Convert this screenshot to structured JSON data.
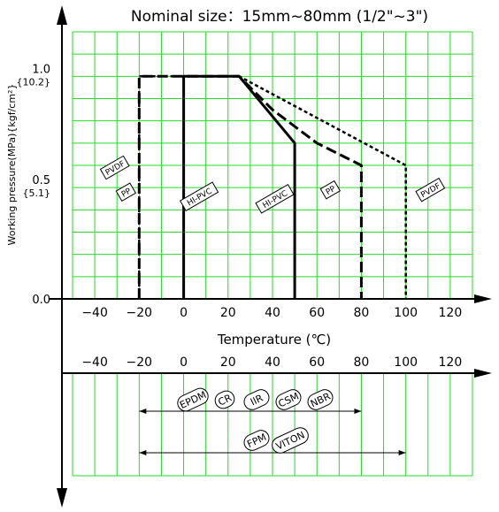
{
  "title": "Nominal size：15mm~80mm (1/2\"~3\")",
  "colors": {
    "grid": "#22dd22",
    "line": "#000000",
    "background": "#ffffff"
  },
  "chart_data": {
    "type": "line",
    "title": "Nominal size：15mm~80mm (1/2\"~3\")",
    "xlabel": "Temperature (℃)",
    "ylabel": "Working pressure(MPa){kgf/cm²}",
    "xlim": [
      -50,
      130
    ],
    "ylim": [
      0,
      1.2
    ],
    "grid": true,
    "x_ticks": [
      "−40",
      "−20",
      "0",
      "20",
      "40",
      "60",
      "80",
      "100",
      "120"
    ],
    "x_tick_values": [
      -40,
      -20,
      0,
      20,
      40,
      60,
      80,
      100,
      120
    ],
    "y_ticks": [
      {
        "value": 0,
        "label": "0.0",
        "sub": ""
      },
      {
        "value": 0.5,
        "label": "0.5",
        "sub": "{5.1}"
      },
      {
        "value": 1.0,
        "label": "1.0",
        "sub": "{10.2}"
      }
    ],
    "series": [
      {
        "name": "PP",
        "style": "long-dash",
        "x": [
          -20,
          -20,
          25,
          40,
          60,
          80,
          80
        ],
        "y": [
          0,
          1.0,
          1.0,
          0.85,
          0.7,
          0.6,
          0
        ]
      },
      {
        "name": "HI-PVC",
        "style": "solid",
        "x": [
          0,
          0,
          25,
          50,
          50
        ],
        "y": [
          0,
          1.0,
          1.0,
          0.7,
          0
        ]
      },
      {
        "name": "PVDF",
        "style": "short-dash",
        "x": [
          -20,
          -20,
          25,
          100,
          100
        ],
        "y": [
          0,
          1.0,
          1.0,
          0.6,
          0
        ]
      }
    ],
    "region_labels": [
      {
        "text": "PVDF",
        "x": -31,
        "y": 0.59,
        "angle": -30
      },
      {
        "text": "PP",
        "x": -26,
        "y": 0.48,
        "angle": -30
      },
      {
        "text": "HI-PVC",
        "x": 7,
        "y": 0.46,
        "angle": -30
      },
      {
        "text": "HI-PVC",
        "x": 41,
        "y": 0.45,
        "angle": -30
      },
      {
        "text": "PP",
        "x": 66,
        "y": 0.49,
        "angle": -30
      },
      {
        "text": "PVDF",
        "x": 111,
        "y": 0.49,
        "angle": -30
      }
    ],
    "lower_panel": {
      "x_ticks": [
        "−40",
        "−20",
        "0",
        "20",
        "40",
        "60",
        "80",
        "100",
        "120"
      ],
      "rubber_ranges": [
        {
          "labels": [
            "EPDM",
            "CR",
            "IIR",
            "CSM",
            "NBR"
          ],
          "xmin": -20,
          "xmax": 80
        },
        {
          "labels": [
            "FPM",
            "VITON"
          ],
          "xmin": -20,
          "xmax": 100
        }
      ]
    }
  }
}
